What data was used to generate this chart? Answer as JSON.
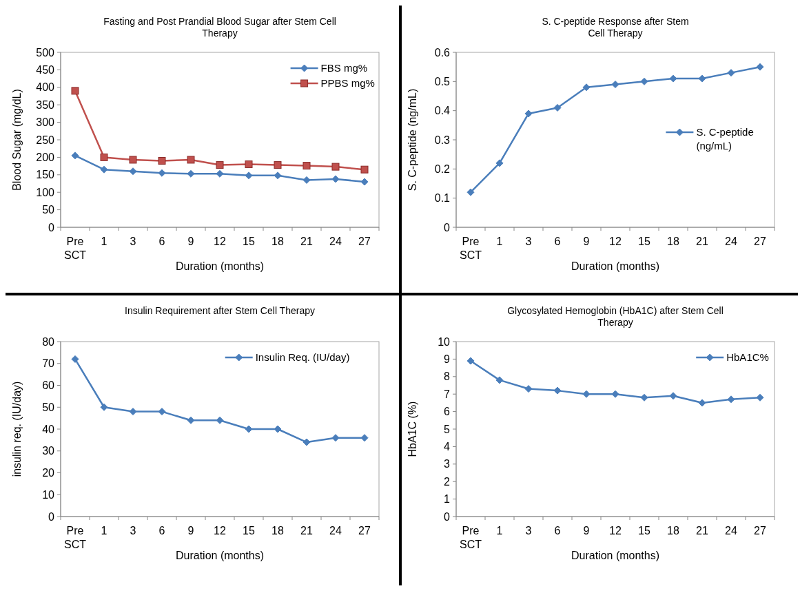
{
  "chart_data": [
    {
      "type": "line",
      "title": "Fasting and Post Prandial Blood Sugar after Stem Cell Therapy",
      "xlabel": "Duration (months)",
      "ylabel": "Blood Sugar (mg/dL)",
      "categories": [
        "Pre SCT",
        "1",
        "3",
        "6",
        "9",
        "12",
        "15",
        "18",
        "21",
        "24",
        "27"
      ],
      "ylim": [
        0,
        500
      ],
      "yticks": [
        0,
        50,
        100,
        150,
        200,
        250,
        300,
        350,
        400,
        450,
        500
      ],
      "legend": "top right",
      "marker": "diamond",
      "series": [
        {
          "name": "FBS mg%",
          "color": "#4a7ebb",
          "values": [
            205,
            165,
            160,
            155,
            153,
            153,
            148,
            148,
            135,
            138,
            130
          ]
        },
        {
          "name": "PPBS mg%",
          "color": "#c0504d",
          "marker": "square",
          "values": [
            390,
            200,
            193,
            190,
            193,
            178,
            180,
            178,
            176,
            173,
            165
          ]
        }
      ]
    },
    {
      "type": "line",
      "title": "S. C-peptide Response after Stem Cell Therapy",
      "xlabel": "Duration (months)",
      "ylabel": "S. C-peptide (ng/mL)",
      "categories": [
        "Pre SCT",
        "1",
        "3",
        "6",
        "9",
        "12",
        "15",
        "18",
        "21",
        "24",
        "27"
      ],
      "ylim": [
        0,
        0.6
      ],
      "yticks": [
        0,
        0.1,
        0.2,
        0.3,
        0.4,
        0.5,
        0.6
      ],
      "legend": "right",
      "marker": "diamond",
      "series": [
        {
          "name": "S. C-peptide (ng/mL)",
          "color": "#4a7ebb",
          "values": [
            0.12,
            0.22,
            0.39,
            0.41,
            0.48,
            0.49,
            0.5,
            0.51,
            0.51,
            0.53,
            0.55
          ]
        }
      ]
    },
    {
      "type": "line",
      "title": "Insulin Requirement after Stem Cell Therapy",
      "xlabel": "Duration (months)",
      "ylabel": "insulin req. (IU/day)",
      "categories": [
        "Pre SCT",
        "1",
        "3",
        "6",
        "9",
        "12",
        "15",
        "18",
        "21",
        "24",
        "27"
      ],
      "ylim": [
        0,
        80
      ],
      "yticks": [
        0,
        10,
        20,
        30,
        40,
        50,
        60,
        70,
        80
      ],
      "legend": "top right",
      "marker": "diamond",
      "series": [
        {
          "name": "Insulin Req. (IU/day)",
          "color": "#4a7ebb",
          "values": [
            72,
            50,
            48,
            48,
            44,
            44,
            40,
            40,
            34,
            36,
            36
          ]
        }
      ]
    },
    {
      "type": "line",
      "title": "Glycosylated Hemoglobin (HbA1C) after Stem Cell Therapy",
      "xlabel": "Duration (months)",
      "ylabel": "HbA1C (%)",
      "categories": [
        "Pre SCT",
        "1",
        "3",
        "6",
        "9",
        "12",
        "15",
        "18",
        "21",
        "24",
        "27"
      ],
      "ylim": [
        0,
        10
      ],
      "yticks": [
        0,
        1,
        2,
        3,
        4,
        5,
        6,
        7,
        8,
        9,
        10
      ],
      "legend": "top right",
      "marker": "diamond",
      "series": [
        {
          "name": "HbA1C%",
          "color": "#4a7ebb",
          "values": [
            8.9,
            7.8,
            7.3,
            7.2,
            7.0,
            7.0,
            6.8,
            6.9,
            6.5,
            6.7,
            6.8
          ]
        }
      ]
    }
  ]
}
